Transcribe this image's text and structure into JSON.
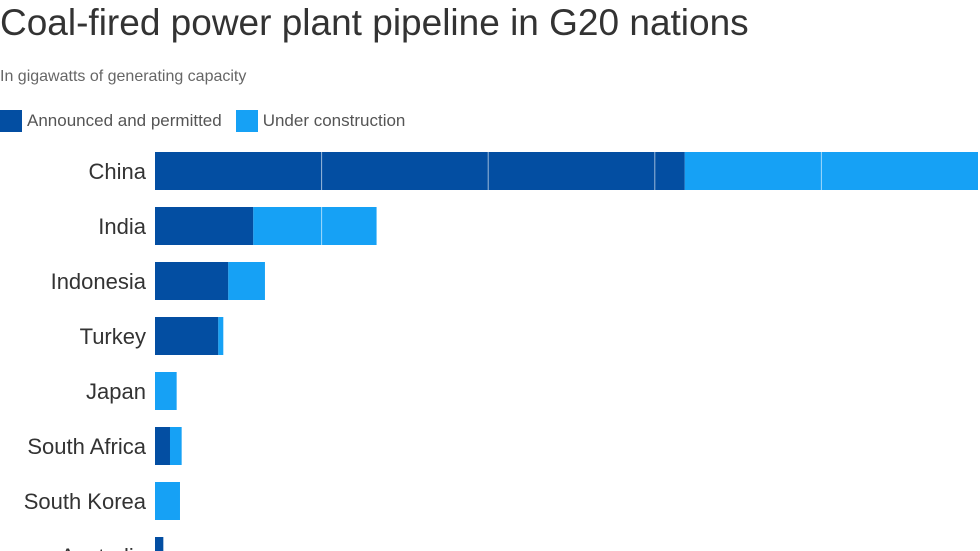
{
  "title": "Coal-fired power plant pipeline in G20 nations",
  "subtitle": "In gigawatts of generating capacity",
  "colors": {
    "announced": "#034ea2",
    "construction": "#16a1f5",
    "gridline": "#ffffff",
    "text": "#333333"
  },
  "chart_data": {
    "type": "bar",
    "orientation": "horizontal",
    "stacked": true,
    "categories": [
      "China",
      "India",
      "Indonesia",
      "Turkey",
      "Japan",
      "South Africa",
      "South Korea",
      "Australia"
    ],
    "series": [
      {
        "name": "Announced and permitted",
        "values": [
          159,
          29.5,
          22,
          19,
          0,
          4.5,
          0,
          2.5
        ]
      },
      {
        "name": "Under construction",
        "values": [
          88,
          37,
          11,
          1.5,
          6.5,
          3.5,
          7.5,
          0
        ]
      }
    ],
    "xlim": [
      0,
      247
    ],
    "gridlines": [
      50,
      100,
      150,
      200
    ],
    "legend_position": "top-left"
  }
}
